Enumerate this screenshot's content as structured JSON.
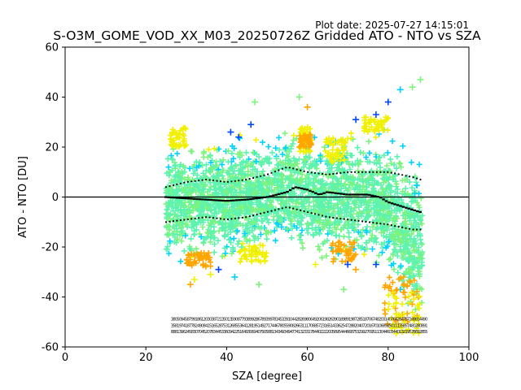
{
  "plot_date_text": "Plot date: 2025-07-27 14:15:01",
  "chart_data": {
    "type": "scatter",
    "title": "S-O3M_GOME_VOD_XX_M03_20250726Z Gridded ATO - NTO vs SZA",
    "xlabel": "SZA [degree]",
    "ylabel": "ATO - NTO [DU]",
    "xlim": [
      0,
      100
    ],
    "ylim": [
      -60,
      60
    ],
    "xticks": [
      "0",
      "20",
      "40",
      "60",
      "80",
      "100"
    ],
    "yticks": [
      "-60",
      "-40",
      "-20",
      "0",
      "20",
      "40",
      "60"
    ],
    "grid": false,
    "legend": "none",
    "marker": "+",
    "colors": {
      "light_green": "#7cf47c",
      "aqua_green": "#5cf2b0",
      "cyan": "#00d2ff",
      "blue": "#0046ff",
      "yellow": "#f0f000",
      "orange": "#ffa500",
      "zero_line": "#000000",
      "stats_markers": "#000000"
    },
    "reference_line_y": 0,
    "cloud_envelope": {
      "sza": [
        25,
        30,
        35,
        40,
        45,
        50,
        55,
        60,
        65,
        70,
        75,
        80,
        82,
        84,
        86,
        88
      ],
      "upper": [
        22,
        25,
        25,
        25,
        26,
        27,
        28,
        28,
        27,
        28,
        28,
        27,
        26,
        24,
        22,
        18
      ],
      "lower": [
        -28,
        -30,
        -30,
        -28,
        -26,
        -24,
        -22,
        -26,
        -28,
        -27,
        -28,
        -32,
        -40,
        -48,
        -54,
        -56
      ]
    },
    "mean_line": {
      "sza": [
        25,
        30,
        35,
        40,
        45,
        50,
        55,
        57,
        60,
        63,
        65,
        70,
        75,
        78,
        80,
        82,
        84,
        86,
        88
      ],
      "values": [
        0,
        -0.5,
        -1,
        -1.5,
        -1,
        0,
        2,
        4,
        3,
        1,
        2,
        1,
        1,
        0,
        -2,
        -3,
        -4,
        -5,
        -6
      ]
    },
    "upper_sd_line": {
      "sza": [
        25,
        30,
        35,
        40,
        45,
        50,
        55,
        60,
        65,
        70,
        75,
        80,
        83,
        86,
        88
      ],
      "values": [
        4,
        6,
        7,
        6,
        7,
        9,
        12,
        10,
        9,
        10,
        10,
        10,
        9,
        8,
        7
      ]
    },
    "lower_sd_line": {
      "sza": [
        25,
        30,
        35,
        40,
        45,
        50,
        55,
        60,
        65,
        70,
        75,
        80,
        83,
        86,
        88
      ],
      "values": [
        -10,
        -9,
        -8,
        -9,
        -8,
        -6,
        -4,
        -6,
        -8,
        -9,
        -10,
        -11,
        -12,
        -13,
        -13
      ]
    },
    "outliers": [
      {
        "x": 41,
        "y": 26,
        "c": "blue"
      },
      {
        "x": 43,
        "y": 24,
        "c": "blue"
      },
      {
        "x": 46,
        "y": 29,
        "c": "blue"
      },
      {
        "x": 38,
        "y": -29,
        "c": "blue"
      },
      {
        "x": 42,
        "y": -32,
        "c": "cyan"
      },
      {
        "x": 31,
        "y": -35,
        "c": "orange"
      },
      {
        "x": 32,
        "y": -33,
        "c": "yellow"
      },
      {
        "x": 36,
        "y": -31,
        "c": "yellow"
      },
      {
        "x": 48,
        "y": -35,
        "c": "light_green"
      },
      {
        "x": 47,
        "y": 38,
        "c": "light_green"
      },
      {
        "x": 58,
        "y": 40,
        "c": "light_green"
      },
      {
        "x": 60,
        "y": 36,
        "c": "orange"
      },
      {
        "x": 72,
        "y": 31,
        "c": "blue"
      },
      {
        "x": 77,
        "y": 33,
        "c": "blue"
      },
      {
        "x": 80,
        "y": 38,
        "c": "blue"
      },
      {
        "x": 83,
        "y": 43,
        "c": "cyan"
      },
      {
        "x": 86,
        "y": 44,
        "c": "light_green"
      },
      {
        "x": 88,
        "y": 47,
        "c": "light_green"
      },
      {
        "x": 69,
        "y": -37,
        "c": "light_green"
      },
      {
        "x": 72,
        "y": -29,
        "c": "orange"
      },
      {
        "x": 77,
        "y": -27,
        "c": "blue"
      },
      {
        "x": 70,
        "y": -27,
        "c": "blue"
      },
      {
        "x": 62,
        "y": -27,
        "c": "yellow"
      }
    ],
    "hot_patches": [
      {
        "x0": 58,
        "x1": 61,
        "y0": 18,
        "y1": 28,
        "c": "yellow"
      },
      {
        "x0": 58,
        "x1": 61,
        "y0": 20,
        "y1": 25,
        "c": "orange"
      },
      {
        "x0": 43,
        "x1": 50,
        "y0": -26,
        "y1": -18,
        "c": "yellow"
      },
      {
        "x0": 66,
        "x1": 72,
        "y0": -26,
        "y1": -18,
        "c": "orange"
      },
      {
        "x0": 30,
        "x1": 36,
        "y0": -28,
        "y1": -22,
        "c": "orange"
      },
      {
        "x0": 79,
        "x1": 88,
        "y0": -52,
        "y1": -32,
        "c": "orange"
      },
      {
        "x0": 80,
        "x1": 88,
        "y0": -56,
        "y1": -38,
        "c": "yellow"
      },
      {
        "x0": 74,
        "x1": 80,
        "y0": 26,
        "y1": 32,
        "c": "yellow"
      },
      {
        "x0": 26,
        "x1": 30,
        "y0": 20,
        "y1": 28,
        "c": "yellow"
      },
      {
        "x0": 64,
        "x1": 70,
        "y0": 14,
        "y1": 24,
        "c": "yellow"
      }
    ],
    "count_annotations": {
      "row_y": [
        -49.5,
        -52,
        -54.5
      ],
      "x_start": 26.5,
      "x_end": 89.5
    }
  }
}
